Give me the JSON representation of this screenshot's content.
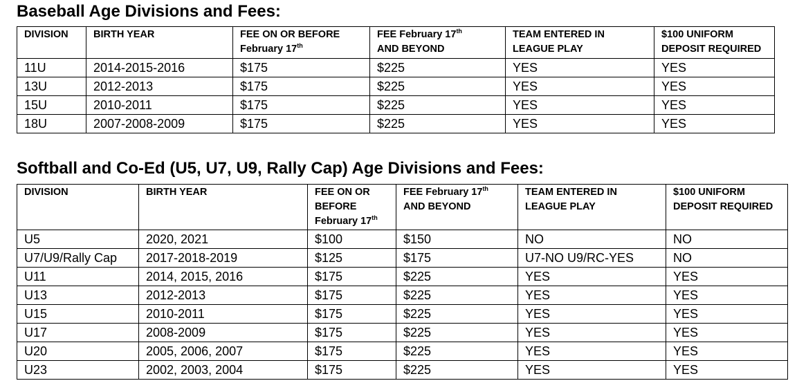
{
  "baseball": {
    "title": "Baseball Age Divisions and Fees:",
    "headers": {
      "division": "DIVISION",
      "birth_year": "BIRTH YEAR",
      "fee_before_l1": "FEE ON OR BEFORE",
      "fee_before_l2": "February 17",
      "fee_before_sup": "th",
      "fee_after_l1": "FEE February 17",
      "fee_after_sup": "th",
      "fee_after_l2": "AND BEYOND",
      "team_l1": "TEAM ENTERED IN",
      "team_l2": "LEAGUE PLAY",
      "deposit_l1": "$100 UNIFORM",
      "deposit_l2": "DEPOSIT REQUIRED"
    },
    "rows": [
      [
        "11U",
        "2014-2015-2016",
        "$175",
        "$225",
        "YES",
        "YES"
      ],
      [
        "13U",
        "2012-2013",
        "$175",
        "$225",
        "YES",
        "YES"
      ],
      [
        "15U",
        "2010-2011",
        "$175",
        "$225",
        "YES",
        "YES"
      ],
      [
        "18U",
        "2007-2008-2009",
        "$175",
        "$225",
        "YES",
        "YES"
      ]
    ]
  },
  "softball": {
    "title": "Softball and Co-Ed (U5, U7, U9, Rally Cap) Age Divisions and Fees:",
    "headers": {
      "division": "DIVISION",
      "birth_year": "BIRTH YEAR",
      "fee_before_l1": "FEE ON OR",
      "fee_before_l2": "BEFORE",
      "fee_before_l3": "February 17",
      "fee_before_sup": "th",
      "fee_after_l1": "FEE February 17",
      "fee_after_sup": "th",
      "fee_after_l2": "AND BEYOND",
      "team_l1": "TEAM ENTERED IN",
      "team_l2": "LEAGUE PLAY",
      "deposit_l1": "$100 UNIFORM",
      "deposit_l2": "DEPOSIT REQUIRED"
    },
    "rows": [
      [
        "U5",
        "2020, 2021",
        "$100",
        "$150",
        "NO",
        "NO"
      ],
      [
        "U7/U9/Rally Cap",
        "2017-2018-2019",
        "$125",
        "$175",
        "U7-NO U9/RC-YES",
        "NO"
      ],
      [
        "U11",
        "2014, 2015, 2016",
        "$175",
        "$225",
        "YES",
        "YES"
      ],
      [
        "U13",
        "2012-2013",
        "$175",
        "$225",
        "YES",
        "YES"
      ],
      [
        "U15",
        "2010-2011",
        "$175",
        "$225",
        "YES",
        "YES"
      ],
      [
        "U17",
        "2008-2009",
        "$175",
        "$225",
        "YES",
        "YES"
      ],
      [
        "U20",
        "2005, 2006, 2007",
        "$175",
        "$225",
        "YES",
        "YES"
      ],
      [
        "U23",
        "2002, 2003, 2004",
        "$175",
        "$225",
        "YES",
        "YES"
      ]
    ]
  }
}
